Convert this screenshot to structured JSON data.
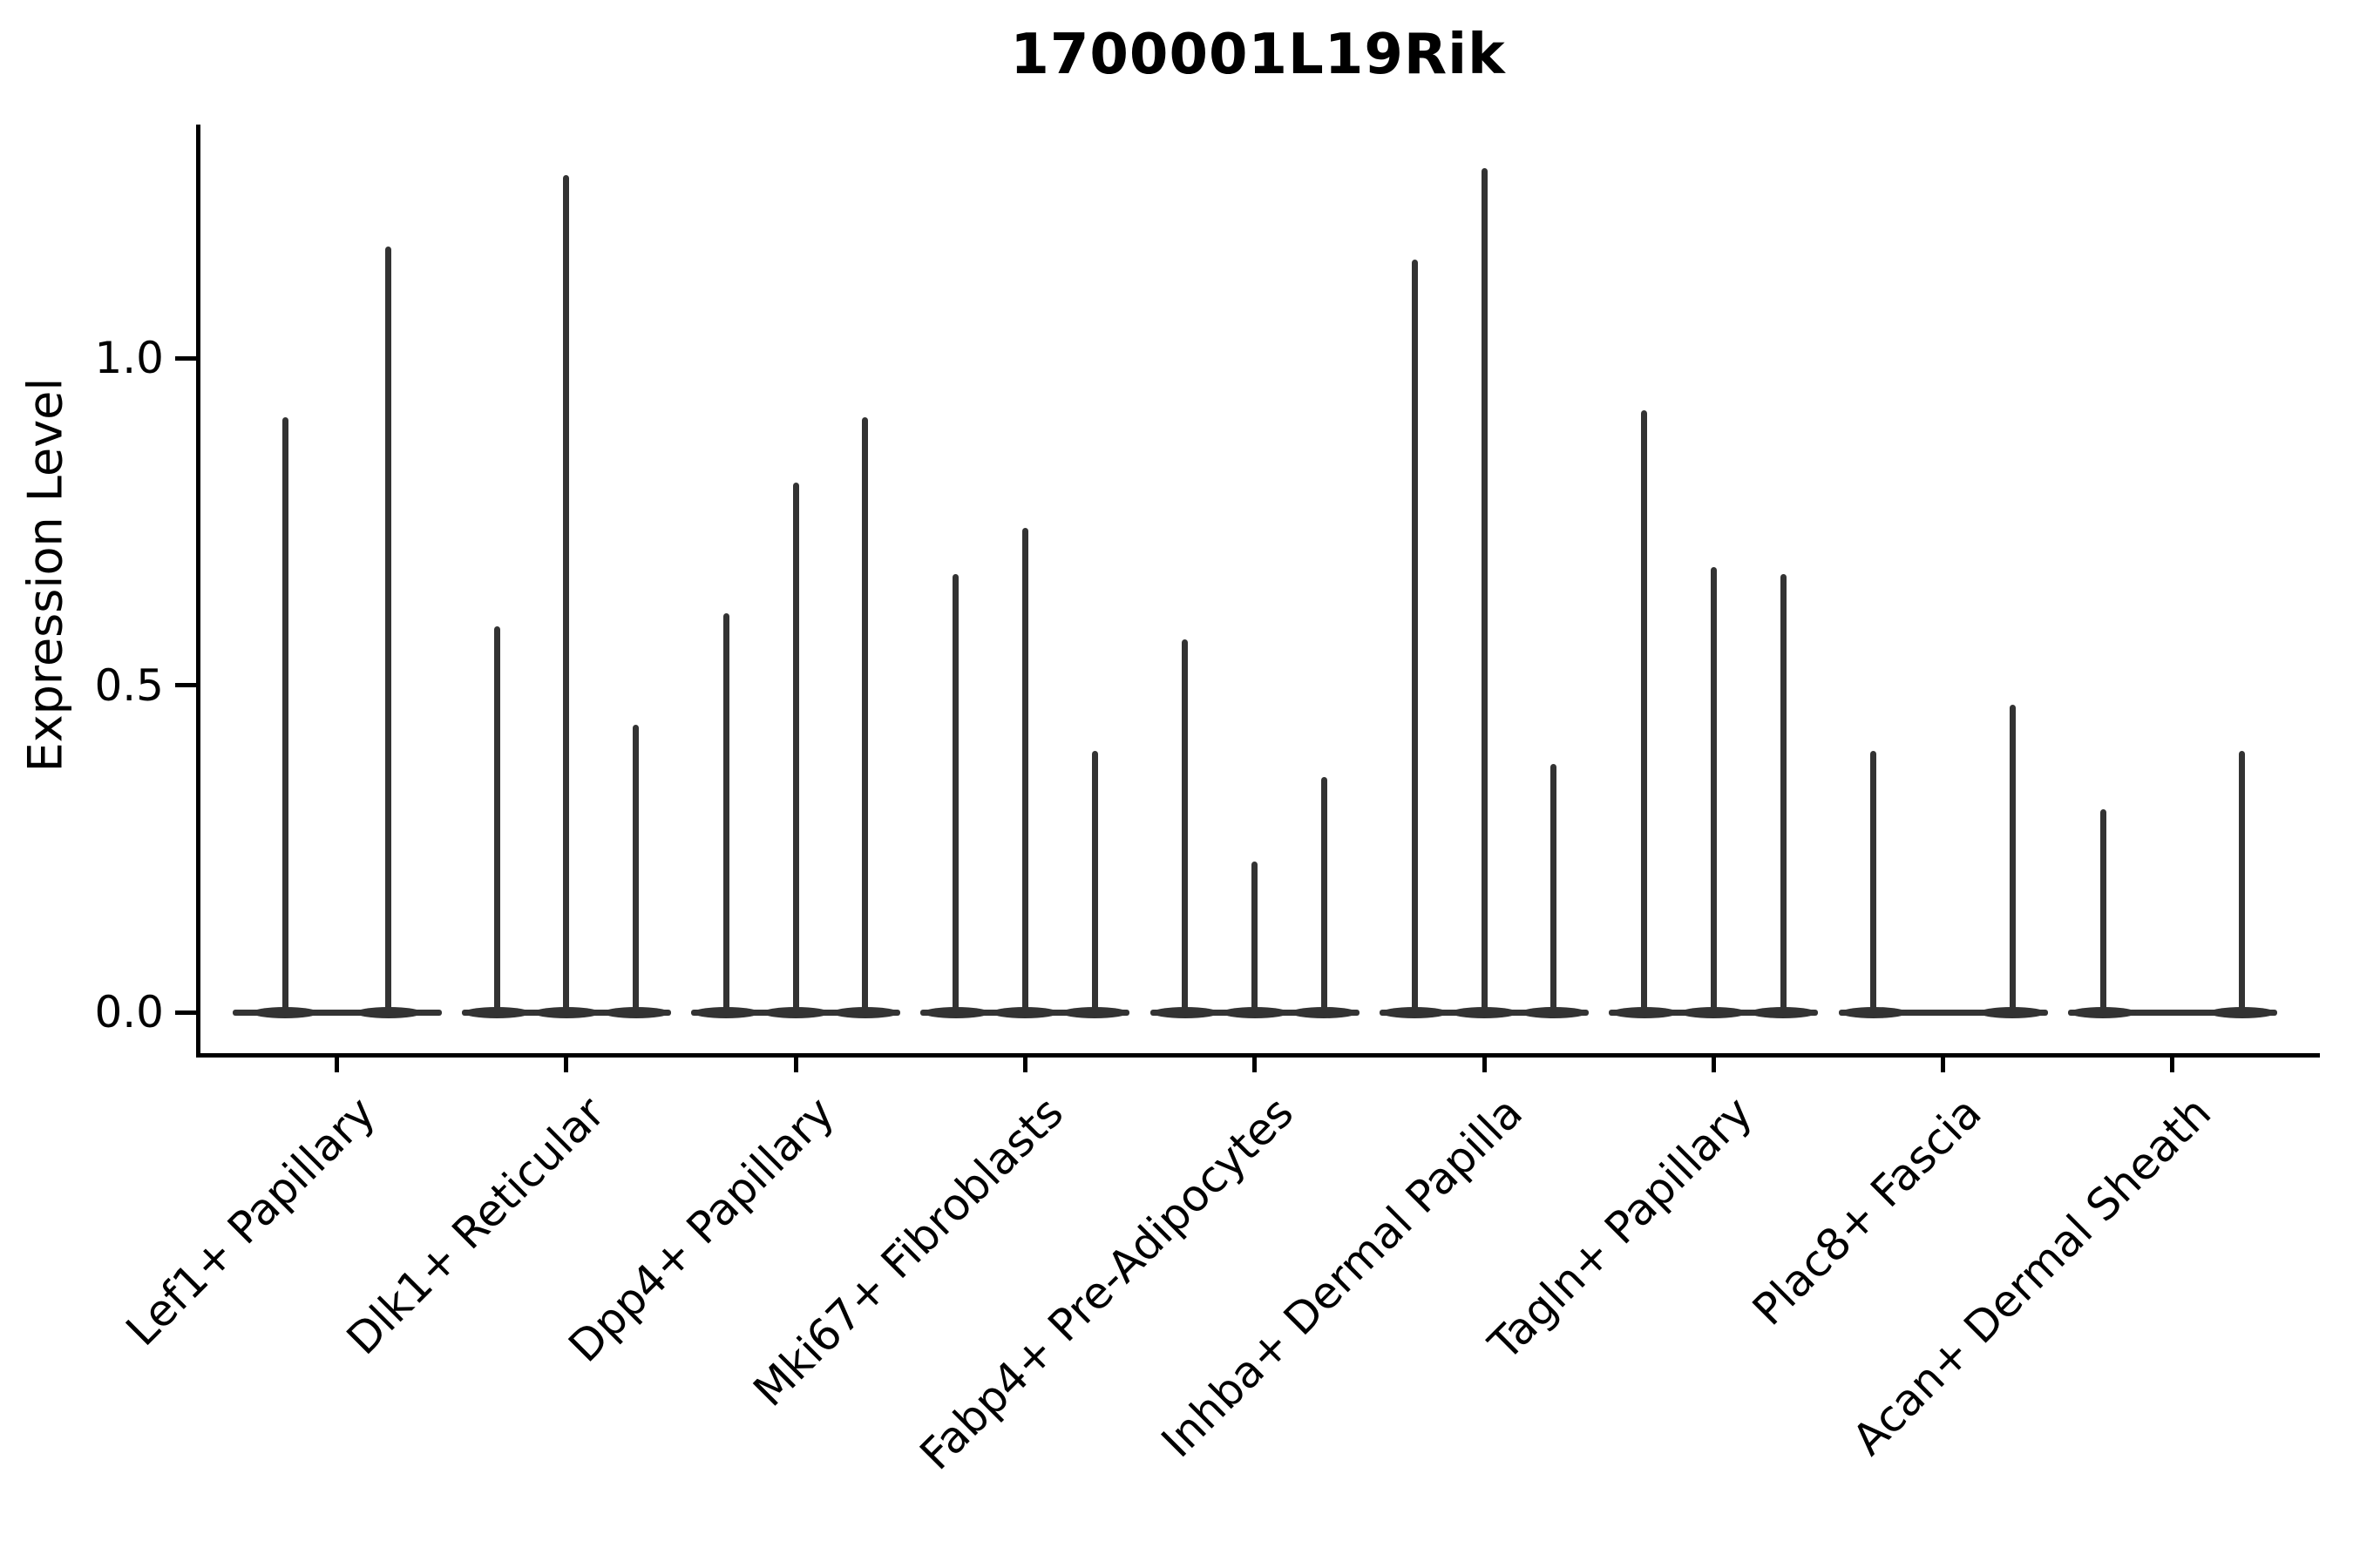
{
  "title": "1700001L19Rik",
  "ylabel": "Expression Level",
  "colors": {
    "background": "#ffffff",
    "violin_line": "#333333",
    "axis": "#000000",
    "text": "#000000"
  },
  "chart_data": {
    "type": "violin",
    "title": "1700001L19Rik",
    "xlabel": "",
    "ylabel": "Expression Level",
    "yticks": [
      0.0,
      0.5,
      1.0
    ],
    "ylim": [
      -0.06,
      1.36
    ],
    "grid": false,
    "legend": "none",
    "categories": [
      "Lef1+ Papillary",
      "Dlk1+ Reticular",
      "Dpp4+ Papillary",
      "Mki67+ Fibroblasts",
      "Fabp4+ Pre-Adipocytes",
      "Inhba+ Dermal Papilla",
      "Tagln+ Papillary",
      "Plac8+ Fascia",
      "Acan+ Dermal Sheath"
    ],
    "description": "Violin plot of expression level per cell type; most cells at 0 giving a flat baseline with thin spikes reaching the maximum expression values. Spike offset is the horizontal position within the category (fraction of category spacing); peak is the top expression value of each spike.",
    "series": [
      {
        "category": "Lef1+ Papillary",
        "violins": [
          {
            "offset": -0.225,
            "peak": 0.91
          },
          {
            "offset": 0.225,
            "peak": 1.17
          }
        ]
      },
      {
        "category": "Dlk1+ Reticular",
        "violins": [
          {
            "offset": -0.303,
            "peak": 0.59
          },
          {
            "offset": 0,
            "peak": 1.28
          },
          {
            "offset": 0.303,
            "peak": 0.44
          }
        ]
      },
      {
        "category": "Dpp4+ Papillary",
        "violins": [
          {
            "offset": -0.303,
            "peak": 0.61
          },
          {
            "offset": 0,
            "peak": 0.81
          },
          {
            "offset": 0.303,
            "peak": 0.91
          }
        ]
      },
      {
        "category": "Mki67+ Fibroblasts",
        "violins": [
          {
            "offset": -0.303,
            "peak": 0.67
          },
          {
            "offset": 0,
            "peak": 0.74
          },
          {
            "offset": 0.303,
            "peak": 0.4
          }
        ]
      },
      {
        "category": "Fabp4+ Pre-Adipocytes",
        "violins": [
          {
            "offset": -0.303,
            "peak": 0.57
          },
          {
            "offset": 0,
            "peak": 0.23
          },
          {
            "offset": 0.303,
            "peak": 0.36
          }
        ]
      },
      {
        "category": "Inhba+ Dermal Papilla",
        "violins": [
          {
            "offset": -0.303,
            "peak": 1.15
          },
          {
            "offset": 0,
            "peak": 1.29
          },
          {
            "offset": 0.303,
            "peak": 0.38
          }
        ]
      },
      {
        "category": "Tagln+ Papillary",
        "violins": [
          {
            "offset": -0.303,
            "peak": 0.92
          },
          {
            "offset": 0,
            "peak": 0.68
          },
          {
            "offset": 0.303,
            "peak": 0.67
          }
        ]
      },
      {
        "category": "Plac8+ Fascia",
        "violins": [
          {
            "offset": -0.303,
            "peak": 0.4
          },
          {
            "offset": 0.303,
            "peak": 0.47
          }
        ]
      },
      {
        "category": "Acan+ Dermal Sheath",
        "violins": [
          {
            "offset": -0.303,
            "peak": 0.31
          },
          {
            "offset": 0.303,
            "peak": 0.4
          }
        ]
      }
    ]
  }
}
